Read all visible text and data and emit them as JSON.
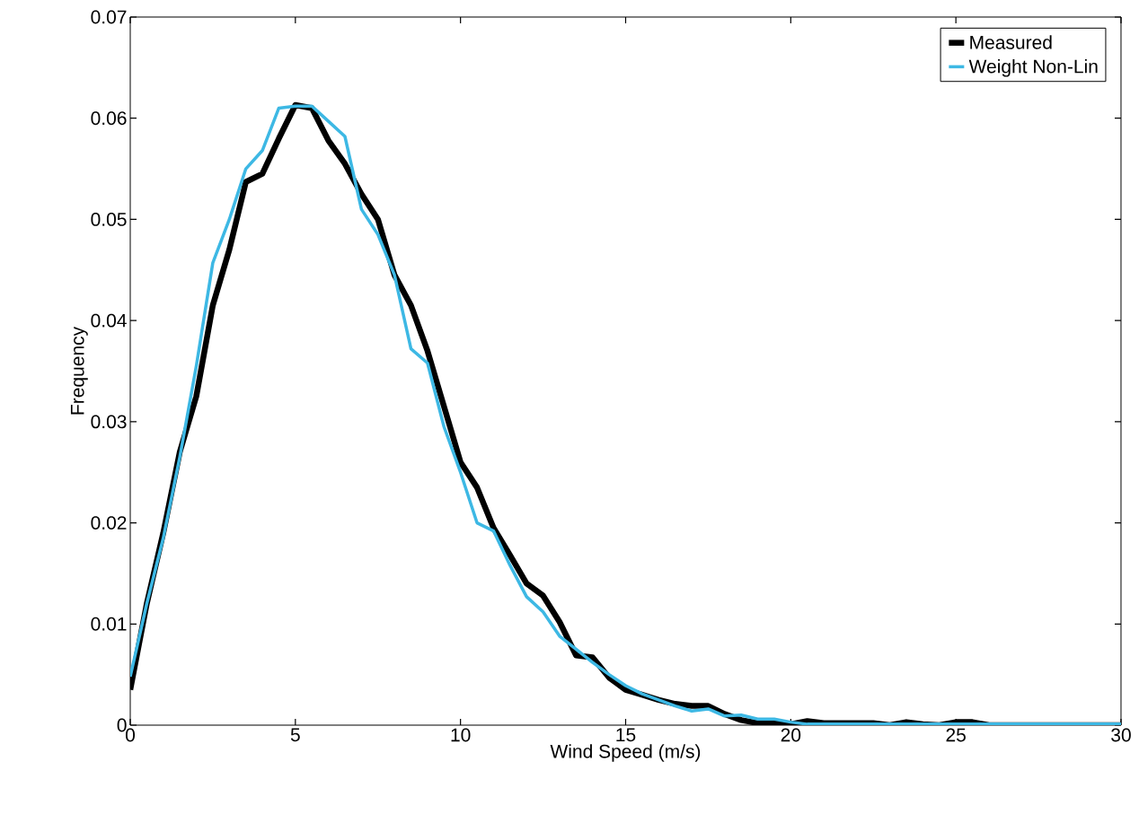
{
  "chart_data": {
    "type": "line",
    "xlabel": "Wind Speed (m/s)",
    "ylabel": "Frequency",
    "x": [
      0,
      0.5,
      1,
      1.5,
      2,
      2.5,
      3,
      3.5,
      4,
      4.5,
      5,
      5.5,
      6,
      6.5,
      7,
      7.5,
      8,
      8.5,
      9,
      9.5,
      10,
      10.5,
      11,
      11.5,
      12,
      12.5,
      13,
      13.5,
      14,
      14.5,
      15,
      15.5,
      16,
      16.5,
      17,
      17.5,
      18,
      18.5,
      19,
      19.5,
      20,
      20.5,
      21,
      21.5,
      22,
      22.5,
      23,
      23.5,
      24,
      24.5,
      25,
      25.5,
      26,
      26.5,
      27,
      27.5,
      28,
      28.5,
      29,
      29.5,
      30
    ],
    "series": [
      {
        "name": "Measured",
        "color": "#000000",
        "values": [
          0.0035,
          0.012,
          0.019,
          0.027,
          0.0325,
          0.0415,
          0.047,
          0.0537,
          0.0545,
          0.058,
          0.0613,
          0.061,
          0.0578,
          0.0555,
          0.0525,
          0.05,
          0.0445,
          0.0415,
          0.037,
          0.0315,
          0.026,
          0.0235,
          0.0195,
          0.0168,
          0.014,
          0.0128,
          0.0102,
          0.0069,
          0.0067,
          0.0047,
          0.0035,
          0.003,
          0.0025,
          0.0021,
          0.0019,
          0.0019,
          0.0011,
          0.0005,
          0.0002,
          0.0002,
          0.0001,
          0.0004,
          0.0002,
          0.0002,
          0.0002,
          0.0002,
          0.0,
          0.0003,
          0.0001,
          0.0,
          0.0003,
          0.0003,
          0.0,
          0.0,
          0.0,
          0.0,
          0.0,
          0.0,
          0.0,
          0.0,
          0.0
        ]
      },
      {
        "name": "Weight Non-Lin",
        "color": "#3db8e4",
        "values": [
          0.0048,
          0.012,
          0.0185,
          0.0265,
          0.0355,
          0.0457,
          0.05,
          0.055,
          0.0568,
          0.061,
          0.0612,
          0.0612,
          0.0597,
          0.0582,
          0.051,
          0.0485,
          0.0445,
          0.0372,
          0.0358,
          0.0295,
          0.025,
          0.02,
          0.0192,
          0.0158,
          0.0127,
          0.0112,
          0.0088,
          0.0075,
          0.0062,
          0.005,
          0.0039,
          0.0031,
          0.0025,
          0.0019,
          0.0014,
          0.0016,
          0.0009,
          0.001,
          0.0006,
          0.0006,
          0.0003,
          0.0001,
          0.0001,
          0.0001,
          0.0001,
          0.0001,
          0.0001,
          0.0001,
          0.0001,
          0.0001,
          0.0001,
          0.0001,
          0.0001,
          0.0001,
          0.0001,
          0.0001,
          0.0001,
          0.0001,
          0.0001,
          0.0001,
          0.0001
        ]
      }
    ],
    "xlim": [
      0,
      30
    ],
    "ylim": [
      0,
      0.07
    ],
    "xticks": [
      0,
      5,
      10,
      15,
      20,
      25,
      30
    ],
    "yticks": [
      0,
      0.01,
      0.02,
      0.03,
      0.04,
      0.05,
      0.06,
      0.07
    ],
    "legend": "top right"
  }
}
